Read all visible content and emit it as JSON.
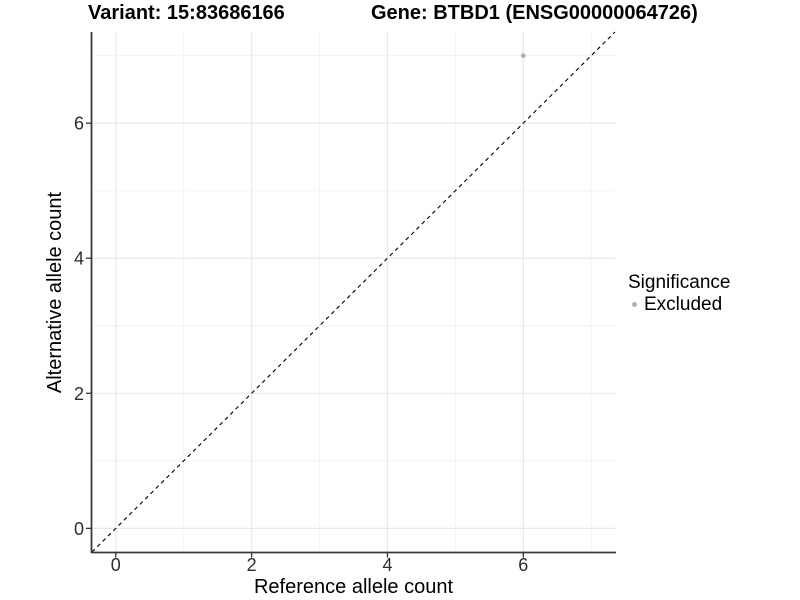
{
  "chart_data": {
    "type": "scatter",
    "title": "Variant: 15:83686166",
    "subtitle": "Gene: BTBD1 (ENSG00000064726)",
    "xlabel": "Reference allele count",
    "ylabel": "Alternative allele count",
    "xlim": [
      -0.35,
      7.35
    ],
    "ylim": [
      -0.35,
      7.35
    ],
    "x_ticks": [
      0,
      2,
      4,
      6
    ],
    "y_ticks": [
      0,
      2,
      4,
      6
    ],
    "x_minor_ticks": [
      1,
      3,
      5,
      7
    ],
    "y_minor_ticks": [
      1,
      3,
      5,
      7
    ],
    "grid": "major+minor",
    "reference_line": {
      "slope": 1,
      "intercept": 0,
      "style": "dashed",
      "color": "#000000"
    },
    "series": [
      {
        "name": "Excluded",
        "color": "#b3b3b3",
        "points": [
          [
            6,
            7
          ]
        ]
      }
    ],
    "legend": {
      "title": "Significance",
      "position": "right",
      "items": [
        {
          "label": "Excluded",
          "color": "#b3b3b3"
        }
      ]
    }
  },
  "colors": {
    "background": "#ffffff",
    "grid_major": "#e8e8e8",
    "grid_minor": "#f3f3f3",
    "axis_line": "#3a3a3a",
    "tick": "#333333",
    "tick_label": "#2e2e2e",
    "point": "#b3b3b3"
  }
}
